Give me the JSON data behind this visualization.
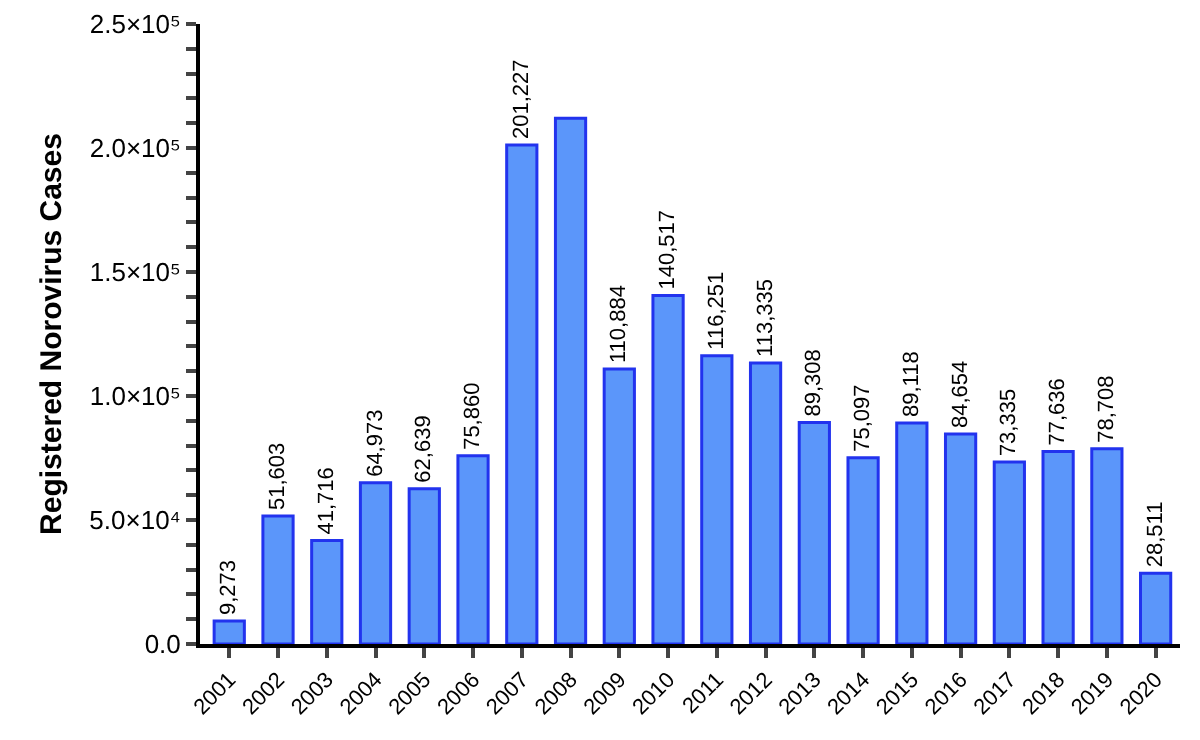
{
  "chart_data": {
    "type": "bar",
    "ylabel": "Registered Norovirus Cases",
    "categories": [
      "2001",
      "2002",
      "2003",
      "2004",
      "2005",
      "2006",
      "2007",
      "2008",
      "2009",
      "2010",
      "2011",
      "2012",
      "2013",
      "2014",
      "2015",
      "2016",
      "2017",
      "2018",
      "2019",
      "2020"
    ],
    "values": [
      9273,
      51603,
      41716,
      64973,
      62639,
      75860,
      201227,
      212000,
      110884,
      140517,
      116251,
      113335,
      89308,
      75097,
      89118,
      84654,
      73335,
      77636,
      78708,
      28511
    ],
    "value_labels": [
      "9,273",
      "51,603",
      "41,716",
      "64,973",
      "62,639",
      "75,860",
      "201,227",
      null,
      "110,884",
      "140,517",
      "116,251",
      "113,335",
      "89,308",
      "75,097",
      "89,118",
      "84,654",
      "73,335",
      "77,636",
      "78,708",
      "28,511"
    ],
    "color": "#5b96fa",
    "ylim": [
      0,
      250000
    ],
    "yticks": [
      {
        "value": 0,
        "label": "0.0"
      },
      {
        "value": 10000,
        "label": null
      },
      {
        "value": 20000,
        "label": null
      },
      {
        "value": 30000,
        "label": null
      },
      {
        "value": 40000,
        "label": null
      },
      {
        "value": 50000,
        "label": "5.0×10⁴"
      },
      {
        "value": 60000,
        "label": null
      },
      {
        "value": 70000,
        "label": null
      },
      {
        "value": 80000,
        "label": null
      },
      {
        "value": 90000,
        "label": null
      },
      {
        "value": 100000,
        "label": "1.0×10⁵"
      },
      {
        "value": 110000,
        "label": null
      },
      {
        "value": 120000,
        "label": null
      },
      {
        "value": 130000,
        "label": null
      },
      {
        "value": 140000,
        "label": null
      },
      {
        "value": 150000,
        "label": "1.5×10⁵"
      },
      {
        "value": 160000,
        "label": null
      },
      {
        "value": 170000,
        "label": null
      },
      {
        "value": 180000,
        "label": null
      },
      {
        "value": 190000,
        "label": null
      },
      {
        "value": 200000,
        "label": "2.0×10⁵"
      },
      {
        "value": 210000,
        "label": null
      },
      {
        "value": 220000,
        "label": null
      },
      {
        "value": 230000,
        "label": null
      },
      {
        "value": 240000,
        "label": null
      },
      {
        "value": 250000,
        "label": "2.5×10⁵"
      }
    ],
    "grid": false,
    "legend": false
  }
}
